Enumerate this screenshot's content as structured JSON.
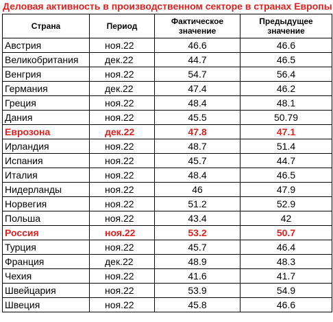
{
  "title": "Деловая активность в производственном секторе в странах Европы",
  "headers": {
    "country": "Страна",
    "period": "Период",
    "actual": "Фактическое значение",
    "previous": "Предыдущее значение"
  },
  "colors": {
    "highlight": "#e0201d",
    "text": "#000000",
    "border": "#000000"
  },
  "rows": [
    {
      "country": "Австрия",
      "period": "ноя.22",
      "actual": "46.6",
      "previous": "46.6",
      "highlight": false
    },
    {
      "country": "Великобритания",
      "period": "дек.22",
      "actual": "44.7",
      "previous": "46.5",
      "highlight": false
    },
    {
      "country": "Венгрия",
      "period": "ноя.22",
      "actual": "54.7",
      "previous": "56.4",
      "highlight": false
    },
    {
      "country": "Германия",
      "period": "дек.22",
      "actual": "47.4",
      "previous": "46.2",
      "highlight": false
    },
    {
      "country": "Греция",
      "period": "ноя.22",
      "actual": "48.4",
      "previous": "48.1",
      "highlight": false
    },
    {
      "country": "Дания",
      "period": "ноя.22",
      "actual": "45.5",
      "previous": "50.79",
      "highlight": false
    },
    {
      "country": "Еврозона",
      "period": "дек.22",
      "actual": "47.8",
      "previous": "47.1",
      "highlight": true
    },
    {
      "country": "Ирландия",
      "period": "ноя.22",
      "actual": "48.7",
      "previous": "51.4",
      "highlight": false
    },
    {
      "country": "Испания",
      "period": "ноя.22",
      "actual": "45.7",
      "previous": "44.7",
      "highlight": false
    },
    {
      "country": "Италия",
      "period": "ноя.22",
      "actual": "48.4",
      "previous": "46.5",
      "highlight": false
    },
    {
      "country": "Нидерланды",
      "period": "ноя.22",
      "actual": "46",
      "previous": "47.9",
      "highlight": false
    },
    {
      "country": "Норвегия",
      "period": "ноя.22",
      "actual": "51.2",
      "previous": "52.9",
      "highlight": false
    },
    {
      "country": "Польша",
      "period": "ноя.22",
      "actual": "43.4",
      "previous": "42",
      "highlight": false
    },
    {
      "country": "Россия",
      "period": "ноя.22",
      "actual": "53.2",
      "previous": "50.7",
      "highlight": true
    },
    {
      "country": "Турция",
      "period": "ноя.22",
      "actual": "45.7",
      "previous": "46.4",
      "highlight": false
    },
    {
      "country": "Франция",
      "period": "дек.22",
      "actual": "48.9",
      "previous": "48.3",
      "highlight": false
    },
    {
      "country": "Чехия",
      "period": "ноя.22",
      "actual": "41.6",
      "previous": "41.7",
      "highlight": false
    },
    {
      "country": "Швейцария",
      "period": "ноя.22",
      "actual": "53.9",
      "previous": "54.9",
      "highlight": false
    },
    {
      "country": "Швеция",
      "period": "ноя.22",
      "actual": "45.8",
      "previous": "46.6",
      "highlight": false
    }
  ]
}
